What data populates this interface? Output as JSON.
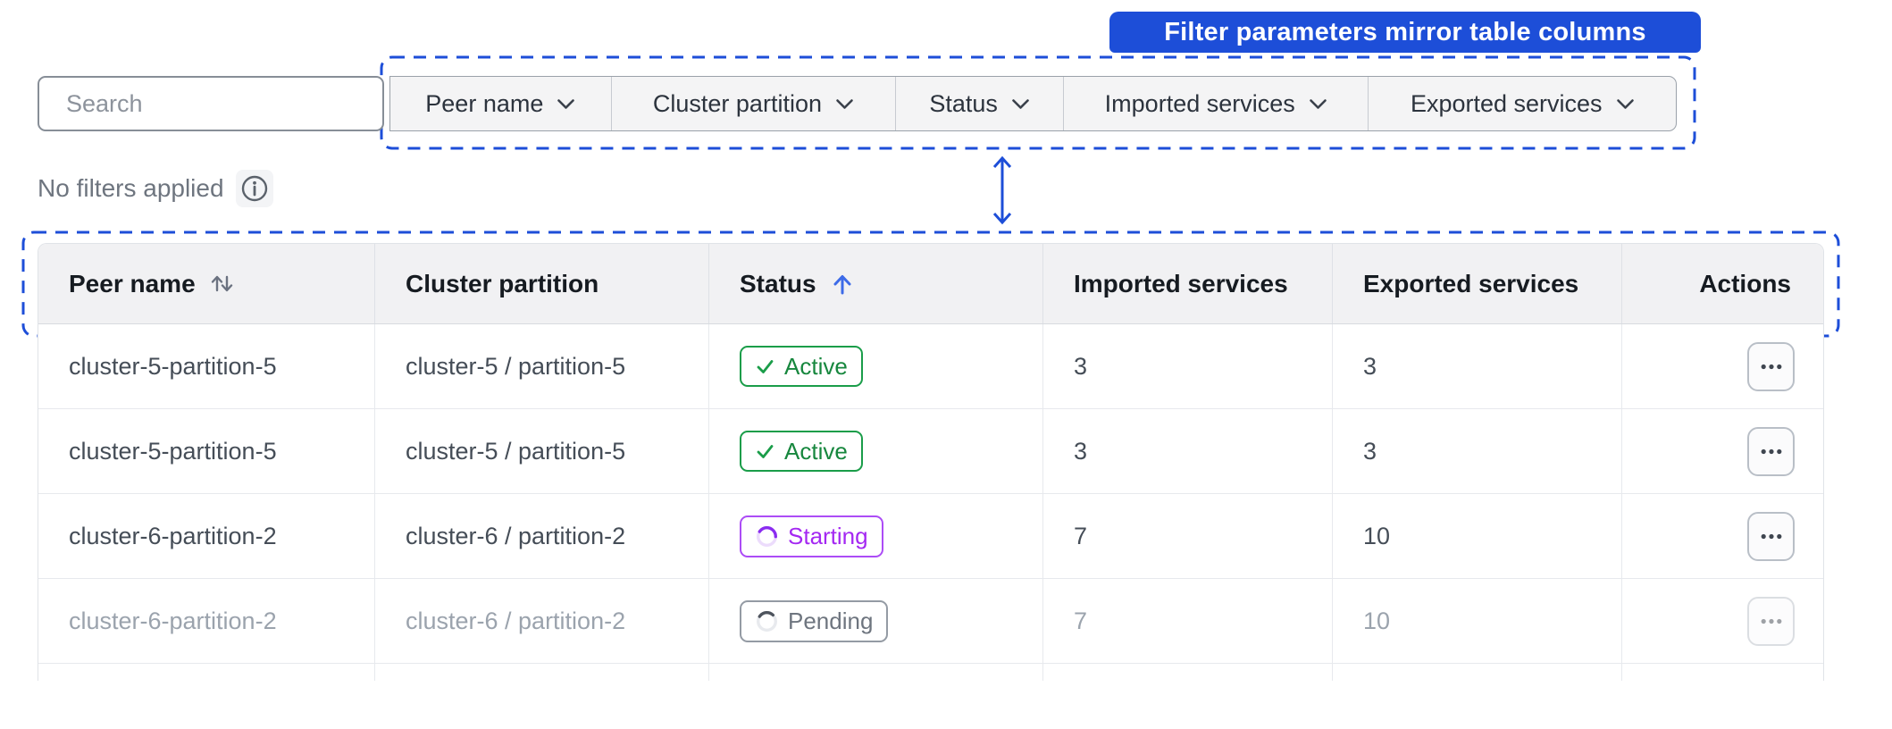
{
  "callout": {
    "label": "Filter parameters mirror table columns"
  },
  "search": {
    "placeholder": "Search"
  },
  "filters": {
    "items": [
      {
        "label": "Peer name"
      },
      {
        "label": "Cluster partition"
      },
      {
        "label": "Status"
      },
      {
        "label": "Imported services"
      },
      {
        "label": "Exported services"
      }
    ]
  },
  "filter_status": {
    "text": "No filters applied"
  },
  "table": {
    "columns": [
      {
        "label": "Peer name",
        "sort": "both"
      },
      {
        "label": "Cluster partition",
        "sort": null
      },
      {
        "label": "Status",
        "sort": "asc"
      },
      {
        "label": "Imported services",
        "sort": null
      },
      {
        "label": "Exported services",
        "sort": null
      },
      {
        "label": "Actions",
        "sort": null
      }
    ],
    "rows": [
      {
        "peer_name": "cluster-5-partition-5",
        "cluster_partition": "cluster-5 / partition-5",
        "status": "Active",
        "status_kind": "active",
        "imported_services": "3",
        "exported_services": "3",
        "muted": false,
        "has_actions": true
      },
      {
        "peer_name": "cluster-5-partition-5",
        "cluster_partition": "cluster-5 / partition-5",
        "status": "Active",
        "status_kind": "active",
        "imported_services": "3",
        "exported_services": "3",
        "muted": false,
        "has_actions": true
      },
      {
        "peer_name": "cluster-6-partition-2",
        "cluster_partition": "cluster-6 / partition-2",
        "status": "Starting",
        "status_kind": "starting",
        "imported_services": "7",
        "exported_services": "10",
        "muted": false,
        "has_actions": true
      },
      {
        "peer_name": "cluster-6-partition-2",
        "cluster_partition": "cluster-6 / partition-2",
        "status": "Pending",
        "status_kind": "pending",
        "imported_services": "7",
        "exported_services": "10",
        "muted": true,
        "has_actions": true
      },
      {
        "peer_name": "",
        "cluster_partition": "",
        "status": null,
        "status_kind": null,
        "imported_services": "",
        "exported_services": "",
        "muted": false,
        "has_actions": false
      }
    ]
  },
  "icons": {
    "search": "magnifier",
    "info": "info-circle",
    "filter_chevron": "chevron-down",
    "sort_both": "up-down-arrows",
    "sort_asc": "arrow-up",
    "active_check": "check",
    "status_spinner": "spinner-ring",
    "row_actions": "ellipsis",
    "mirror_arrow": "double-headed-vertical-arrow"
  },
  "colors": {
    "accent_blue": "#1d4ed8",
    "sort_asc_blue": "#3d6be8",
    "status_styles": {
      "active": {
        "border": "#1a9d49",
        "text": "#17873e",
        "icon": "#1a9d49"
      },
      "starting": {
        "border": "#ac4cf6",
        "text": "#a428f2",
        "arc": "#8a2cf0",
        "track": "#ecdcfc",
        "dash": "24 36"
      },
      "pending": {
        "border": "#949ba4",
        "text": "#6e757f",
        "arc": "#4e545d",
        "track": "#e8eaee",
        "dash": "16 44"
      }
    }
  }
}
